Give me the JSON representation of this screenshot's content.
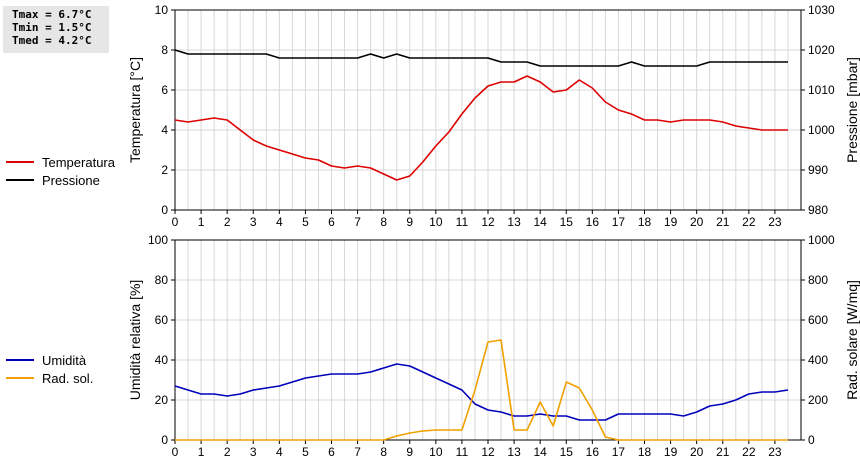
{
  "stats": [
    {
      "label": "Tmax",
      "value": "6.7°C"
    },
    {
      "label": "Tmin",
      "value": "1.5°C"
    },
    {
      "label": "Tmed",
      "value": "4.2°C"
    }
  ],
  "colors": {
    "temperature": "#dd0000",
    "pressure": "#000000",
    "humidity": "#0000bb",
    "radiation": "#f0a000",
    "grid": "#d8d8d8"
  },
  "chart_data": [
    {
      "type": "line",
      "xlim": [
        0,
        24
      ],
      "x_ticks": [
        "0",
        "1",
        "2",
        "3",
        "4",
        "5",
        "6",
        "7",
        "8",
        "9",
        "10",
        "11",
        "12",
        "13",
        "14",
        "15",
        "16",
        "17",
        "18",
        "19",
        "20",
        "21",
        "22",
        "23"
      ],
      "ylabel": "Temperatura [°C]",
      "ylim": [
        0,
        10
      ],
      "y_ticks": [
        "0",
        "2",
        "4",
        "6",
        "8",
        "10"
      ],
      "y2label": "Pressione [mbar]",
      "y2lim": [
        980,
        1030
      ],
      "y2_ticks": [
        "980",
        "990",
        "1000",
        "1010",
        "1020",
        "1030"
      ],
      "grid": true,
      "legend_position": "left",
      "series": [
        {
          "name": "Temperatura",
          "axis": "left",
          "color_key": "temperature",
          "x": [
            0,
            0.5,
            1,
            1.5,
            2,
            2.5,
            3,
            3.5,
            4,
            4.5,
            5,
            5.5,
            6,
            6.5,
            7,
            7.5,
            8,
            8.5,
            9,
            9.5,
            10,
            10.5,
            11,
            11.5,
            12,
            12.5,
            13,
            13.5,
            14,
            14.5,
            15,
            15.5,
            16,
            16.5,
            17,
            17.5,
            18,
            18.5,
            19,
            19.5,
            20,
            20.5,
            21,
            21.5,
            22,
            22.5,
            23,
            23.5
          ],
          "y": [
            4.5,
            4.4,
            4.5,
            4.6,
            4.5,
            4.0,
            3.5,
            3.2,
            3.0,
            2.8,
            2.6,
            2.5,
            2.2,
            2.1,
            2.2,
            2.1,
            1.8,
            1.5,
            1.7,
            2.4,
            3.2,
            3.9,
            4.8,
            5.6,
            6.2,
            6.4,
            6.4,
            6.7,
            6.4,
            5.9,
            6.0,
            6.5,
            6.1,
            5.4,
            5.0,
            4.8,
            4.5,
            4.5,
            4.4,
            4.5,
            4.5,
            4.5,
            4.4,
            4.2,
            4.1,
            4.0,
            4.0,
            4.0
          ]
        },
        {
          "name": "Pressione",
          "axis": "right",
          "color_key": "pressure",
          "x": [
            0,
            0.5,
            1,
            1.5,
            2,
            2.5,
            3,
            3.5,
            4,
            4.5,
            5,
            5.5,
            6,
            6.5,
            7,
            7.5,
            8,
            8.5,
            9,
            9.5,
            10,
            10.5,
            11,
            11.5,
            12,
            12.5,
            13,
            13.5,
            14,
            14.5,
            15,
            15.5,
            16,
            16.5,
            17,
            17.5,
            18,
            18.5,
            19,
            19.5,
            20,
            20.5,
            21,
            21.5,
            22,
            22.5,
            23,
            23.5
          ],
          "y": [
            1020,
            1019,
            1019,
            1019,
            1019,
            1019,
            1019,
            1019,
            1018,
            1018,
            1018,
            1018,
            1018,
            1018,
            1018,
            1019,
            1018,
            1019,
            1018,
            1018,
            1018,
            1018,
            1018,
            1018,
            1018,
            1017,
            1017,
            1017,
            1016,
            1016,
            1016,
            1016,
            1016,
            1016,
            1016,
            1017,
            1016,
            1016,
            1016,
            1016,
            1016,
            1017,
            1017,
            1017,
            1017,
            1017,
            1017,
            1017
          ]
        }
      ]
    },
    {
      "type": "line",
      "xlim": [
        0,
        24
      ],
      "x_ticks": [
        "0",
        "1",
        "2",
        "3",
        "4",
        "5",
        "6",
        "7",
        "8",
        "9",
        "10",
        "11",
        "12",
        "13",
        "14",
        "15",
        "16",
        "17",
        "18",
        "19",
        "20",
        "21",
        "22",
        "23"
      ],
      "ylabel": "Umidità relativa [%]",
      "ylim": [
        0,
        100
      ],
      "y_ticks": [
        "0",
        "20",
        "40",
        "60",
        "80",
        "100"
      ],
      "y2label": "Rad. solare [W/mq]",
      "y2lim": [
        0,
        1000
      ],
      "y2_ticks": [
        "0",
        "200",
        "400",
        "600",
        "800",
        "1000"
      ],
      "grid": true,
      "legend_position": "left",
      "series": [
        {
          "name": "Umidità",
          "axis": "left",
          "color_key": "humidity",
          "x": [
            0,
            0.5,
            1,
            1.5,
            2,
            2.5,
            3,
            3.5,
            4,
            4.5,
            5,
            5.5,
            6,
            6.5,
            7,
            7.5,
            8,
            8.5,
            9,
            9.5,
            10,
            10.5,
            11,
            11.5,
            12,
            12.5,
            13,
            13.5,
            14,
            14.5,
            15,
            15.5,
            16,
            16.5,
            17,
            17.5,
            18,
            18.5,
            19,
            19.5,
            20,
            20.5,
            21,
            21.5,
            22,
            22.5,
            23,
            23.5
          ],
          "y": [
            27,
            25,
            23,
            23,
            22,
            23,
            25,
            26,
            27,
            29,
            31,
            32,
            33,
            33,
            33,
            34,
            36,
            38,
            37,
            34,
            31,
            28,
            25,
            18,
            15,
            14,
            12,
            12,
            13,
            12,
            12,
            10,
            10,
            10,
            13,
            13,
            13,
            13,
            13,
            12,
            14,
            17,
            18,
            20,
            23,
            24,
            24,
            25
          ]
        },
        {
          "name": "Rad. sol.",
          "axis": "right",
          "color_key": "radiation",
          "x": [
            0,
            0.5,
            1,
            1.5,
            2,
            2.5,
            3,
            3.5,
            4,
            4.5,
            5,
            5.5,
            6,
            6.5,
            7,
            7.5,
            8,
            8.5,
            9,
            9.5,
            10,
            10.5,
            11,
            11.5,
            12,
            12.5,
            13,
            13.5,
            14,
            14.5,
            15,
            15.5,
            16,
            16.5,
            17,
            17.5,
            18,
            18.5,
            19,
            19.5,
            20,
            20.5,
            21,
            21.5,
            22,
            22.5,
            23,
            23.5
          ],
          "y": [
            0,
            0,
            0,
            0,
            0,
            0,
            0,
            0,
            0,
            0,
            0,
            0,
            0,
            0,
            0,
            0,
            0,
            20,
            35,
            45,
            50,
            50,
            50,
            250,
            490,
            500,
            50,
            50,
            190,
            70,
            290,
            260,
            150,
            15,
            0,
            0,
            0,
            0,
            0,
            0,
            0,
            0,
            0,
            0,
            0,
            0,
            0,
            0
          ]
        }
      ]
    }
  ]
}
